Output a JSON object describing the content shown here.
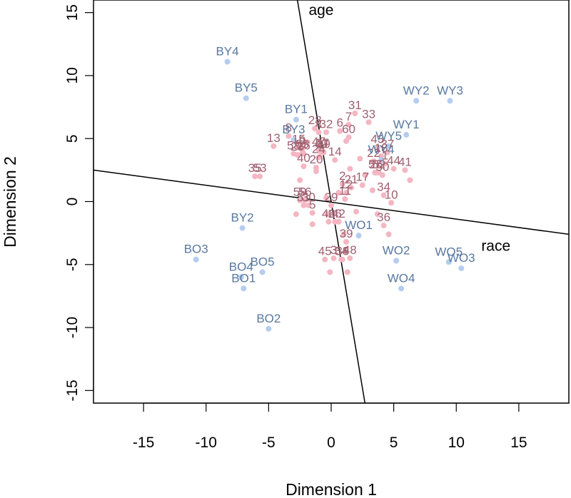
{
  "chart_data": {
    "type": "scatter",
    "title": "",
    "xlabel": "Dimension 1",
    "ylabel": "Dimension 2",
    "xlim": [
      -19,
      19
    ],
    "ylim": [
      -16,
      16
    ],
    "xticks": [
      -15,
      -10,
      -5,
      0,
      5,
      10,
      15
    ],
    "yticks": [
      -15,
      -10,
      -5,
      0,
      5,
      10,
      15
    ],
    "xtick_labels": [
      "-15",
      "-10",
      "-5",
      "0",
      "5",
      "10",
      "15"
    ],
    "ytick_labels": [
      "-15",
      "-10",
      "-5",
      "0",
      "5",
      "10",
      "15"
    ],
    "grid": false,
    "colors": {
      "stimulus_point": "#b4cdef",
      "stimulus_label": "#5878a0",
      "subject_point": "#f4b6c2",
      "subject_label": "#a06070",
      "axis_line": "#000000"
    },
    "stimuli": [
      {
        "label": "BY4",
        "x": -8.3,
        "y": 11.1
      },
      {
        "label": "BY5",
        "x": -6.8,
        "y": 8.2
      },
      {
        "label": "BY1",
        "x": -2.8,
        "y": 6.5
      },
      {
        "label": "BY3",
        "x": -3.0,
        "y": 4.9
      },
      {
        "label": "BY2",
        "x": -7.1,
        "y": -2.1
      },
      {
        "label": "BO3",
        "x": -10.8,
        "y": -4.6
      },
      {
        "label": "BO5",
        "x": -5.5,
        "y": -5.6
      },
      {
        "label": "BO4",
        "x": -7.2,
        "y": -6.0
      },
      {
        "label": "BO1",
        "x": -7.0,
        "y": -6.9
      },
      {
        "label": "BO2",
        "x": -5.0,
        "y": -10.1
      },
      {
        "label": "WY2",
        "x": 6.8,
        "y": 8.0
      },
      {
        "label": "WY3",
        "x": 9.5,
        "y": 8.0
      },
      {
        "label": "WY1",
        "x": 6.0,
        "y": 5.3
      },
      {
        "label": "WY5",
        "x": 4.6,
        "y": 4.4
      },
      {
        "label": "WY4",
        "x": 4.0,
        "y": 3.3
      },
      {
        "label": "WO1",
        "x": 2.2,
        "y": -2.7
      },
      {
        "label": "WO2",
        "x": 5.2,
        "y": -4.7
      },
      {
        "label": "WO5",
        "x": 9.4,
        "y": -4.8
      },
      {
        "label": "WO3",
        "x": 10.4,
        "y": -5.3
      },
      {
        "label": "WO4",
        "x": 5.6,
        "y": -6.9
      }
    ],
    "subjects": [
      {
        "label": "1",
        "x": 4.3,
        "y": 3.0
      },
      {
        "label": "2",
        "x": 0.9,
        "y": 1.4
      },
      {
        "label": "3",
        "x": 0.2,
        "y": -4.5
      },
      {
        "label": "4",
        "x": -1.0,
        "y": 5.5
      },
      {
        "label": "5",
        "x": -1.5,
        "y": -0.9
      },
      {
        "label": "6",
        "x": 0.7,
        "y": 5.6
      },
      {
        "label": "7",
        "x": 1.4,
        "y": 6.1
      },
      {
        "label": "8",
        "x": -3.4,
        "y": 5.2
      },
      {
        "label": "9",
        "x": -2.3,
        "y": 4.2
      },
      {
        "label": "10",
        "x": 4.8,
        "y": -0.1
      },
      {
        "label": "11",
        "x": 1.1,
        "y": 0.2
      },
      {
        "label": "12",
        "x": 1.2,
        "y": 0.7
      },
      {
        "label": "13",
        "x": -4.6,
        "y": 4.4
      },
      {
        "label": "14",
        "x": 0.3,
        "y": 3.3
      },
      {
        "label": "15",
        "x": -2.6,
        "y": 4.3
      },
      {
        "label": "16",
        "x": -2.2,
        "y": 3.8
      },
      {
        "label": "17",
        "x": 2.5,
        "y": 1.3
      },
      {
        "label": "18",
        "x": 4.0,
        "y": 3.6
      },
      {
        "label": "19",
        "x": -0.6,
        "y": 3.9
      },
      {
        "label": "20",
        "x": -1.2,
        "y": 2.7
      },
      {
        "label": "21",
        "x": 1.6,
        "y": 1.1
      },
      {
        "label": "22",
        "x": 3.4,
        "y": 3.2
      },
      {
        "label": "23",
        "x": -2.7,
        "y": 3.7
      },
      {
        "label": "24",
        "x": -1.0,
        "y": 3.5
      },
      {
        "label": "25",
        "x": 3.6,
        "y": 2.3
      },
      {
        "label": "26",
        "x": 0.3,
        "y": -1.6
      },
      {
        "label": "27",
        "x": -0.7,
        "y": 4.0
      },
      {
        "label": "28",
        "x": -1.3,
        "y": 5.8
      },
      {
        "label": "29",
        "x": 0.0,
        "y": -0.3
      },
      {
        "label": "30",
        "x": -1.8,
        "y": -0.3
      },
      {
        "label": "31",
        "x": 1.9,
        "y": 7.0
      },
      {
        "label": "32",
        "x": -0.4,
        "y": 5.5
      },
      {
        "label": "33",
        "x": 3.0,
        "y": 6.3
      },
      {
        "label": "34",
        "x": 4.2,
        "y": 0.5
      },
      {
        "label": "35",
        "x": -6.1,
        "y": 2.0
      },
      {
        "label": "36",
        "x": 4.2,
        "y": -1.9
      },
      {
        "label": "37",
        "x": 4.5,
        "y": 3.9
      },
      {
        "label": "38",
        "x": 0.9,
        "y": -4.6
      },
      {
        "label": "39",
        "x": 1.2,
        "y": -3.2
      },
      {
        "label": "40",
        "x": -2.2,
        "y": 2.8
      },
      {
        "label": "41",
        "x": 5.9,
        "y": 2.5
      },
      {
        "label": "42",
        "x": 0.6,
        "y": -1.6
      },
      {
        "label": "43",
        "x": 3.7,
        "y": 4.3
      },
      {
        "label": "44",
        "x": 5.0,
        "y": 2.6
      },
      {
        "label": "45",
        "x": -0.5,
        "y": -4.6
      },
      {
        "label": "46",
        "x": -0.2,
        "y": -1.6
      },
      {
        "label": "47",
        "x": -1.0,
        "y": 4.1
      },
      {
        "label": "48",
        "x": 1.5,
        "y": -4.5
      },
      {
        "label": "49",
        "x": -0.8,
        "y": 3.9
      },
      {
        "label": "50",
        "x": 4.1,
        "y": 2.1
      },
      {
        "label": "51",
        "x": -2.2,
        "y": -0.3
      },
      {
        "label": "52",
        "x": 3.8,
        "y": 2.3
      },
      {
        "label": "53",
        "x": -5.7,
        "y": 2.0
      },
      {
        "label": "54",
        "x": 0.8,
        "y": -4.6
      },
      {
        "label": "55",
        "x": -2.3,
        "y": 3.9
      },
      {
        "label": "56",
        "x": -2.1,
        "y": 0.1
      },
      {
        "label": "57",
        "x": 3.5,
        "y": 2.3
      },
      {
        "label": "58",
        "x": -3.0,
        "y": 3.8
      },
      {
        "label": "59",
        "x": -2.5,
        "y": 0.1
      },
      {
        "label": "60",
        "x": 1.4,
        "y": 5.1
      }
    ],
    "subject_extra_points": [
      {
        "x": 1.2,
        "y": 4.8
      },
      {
        "x": -2.5,
        "y": 1.7
      },
      {
        "x": -1.2,
        "y": 2.4
      },
      {
        "x": 1.5,
        "y": 2.6
      },
      {
        "x": 2.7,
        "y": 2.1
      },
      {
        "x": 0.6,
        "y": 0.7
      },
      {
        "x": -0.4,
        "y": 0.3
      },
      {
        "x": 3.3,
        "y": 0.9
      },
      {
        "x": 2.0,
        "y": -0.8
      },
      {
        "x": -2.8,
        "y": -1.0
      },
      {
        "x": -1.5,
        "y": -1.8
      },
      {
        "x": -0.3,
        "y": -1.0
      },
      {
        "x": 3.7,
        "y": -1.0
      },
      {
        "x": 1.0,
        "y": -2.6
      },
      {
        "x": -0.1,
        "y": -5.6
      },
      {
        "x": 1.3,
        "y": -5.6
      },
      {
        "x": 4.6,
        "y": -2.6
      },
      {
        "x": 6.3,
        "y": 1.7
      },
      {
        "x": -1.9,
        "y": 4.7
      },
      {
        "x": 2.3,
        "y": 3.4
      }
    ],
    "axis_lines": [
      {
        "label": "age",
        "from": [
          -2.7,
          16.0
        ],
        "to": [
          2.7,
          -16.0
        ],
        "label_at": [
          -1.8,
          15.2
        ]
      },
      {
        "label": "race",
        "from": [
          -19.0,
          2.5
        ],
        "to": [
          19.0,
          -2.6
        ],
        "label_at": [
          12.0,
          -3.5
        ]
      }
    ]
  }
}
